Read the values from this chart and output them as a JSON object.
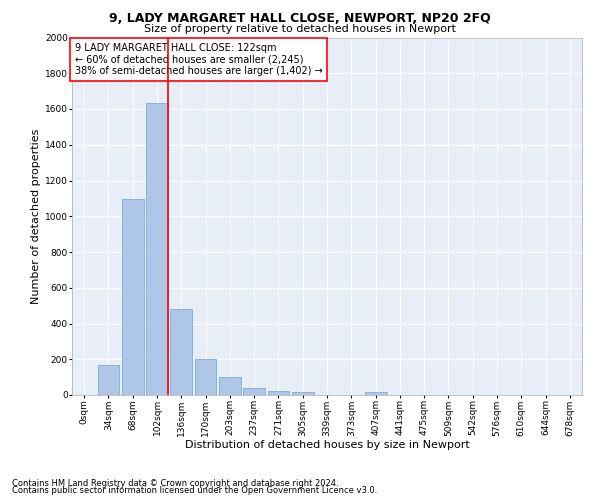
{
  "title1": "9, LADY MARGARET HALL CLOSE, NEWPORT, NP20 2FQ",
  "title2": "Size of property relative to detached houses in Newport",
  "xlabel": "Distribution of detached houses by size in Newport",
  "ylabel": "Number of detached properties",
  "footnote1": "Contains HM Land Registry data © Crown copyright and database right 2024.",
  "footnote2": "Contains public sector information licensed under the Open Government Licence v3.0.",
  "annotation_line1": "9 LADY MARGARET HALL CLOSE: 122sqm",
  "annotation_line2": "← 60% of detached houses are smaller (2,245)",
  "annotation_line3": "38% of semi-detached houses are larger (1,402) →",
  "bar_labels": [
    "0sqm",
    "34sqm",
    "68sqm",
    "102sqm",
    "136sqm",
    "170sqm",
    "203sqm",
    "237sqm",
    "271sqm",
    "305sqm",
    "339sqm",
    "373sqm",
    "407sqm",
    "441sqm",
    "475sqm",
    "509sqm",
    "542sqm",
    "576sqm",
    "610sqm",
    "644sqm",
    "678sqm"
  ],
  "bar_values": [
    0,
    170,
    1095,
    1635,
    480,
    200,
    100,
    40,
    22,
    15,
    0,
    0,
    15,
    0,
    0,
    0,
    0,
    0,
    0,
    0,
    0
  ],
  "bar_color": "#aec6e8",
  "bar_edgecolor": "#7aadd4",
  "vline_color": "red",
  "vline_pos": 3.47,
  "ylim": [
    0,
    2000
  ],
  "yticks": [
    0,
    200,
    400,
    600,
    800,
    1000,
    1200,
    1400,
    1600,
    1800,
    2000
  ],
  "bg_color": "#e8eef8",
  "grid_color": "#ffffff",
  "annotation_box_edgecolor": "red",
  "title1_fontsize": 9,
  "title2_fontsize": 8,
  "tick_fontsize": 6.5,
  "ylabel_fontsize": 8,
  "xlabel_fontsize": 8,
  "footnote_fontsize": 6,
  "annotation_fontsize": 7
}
